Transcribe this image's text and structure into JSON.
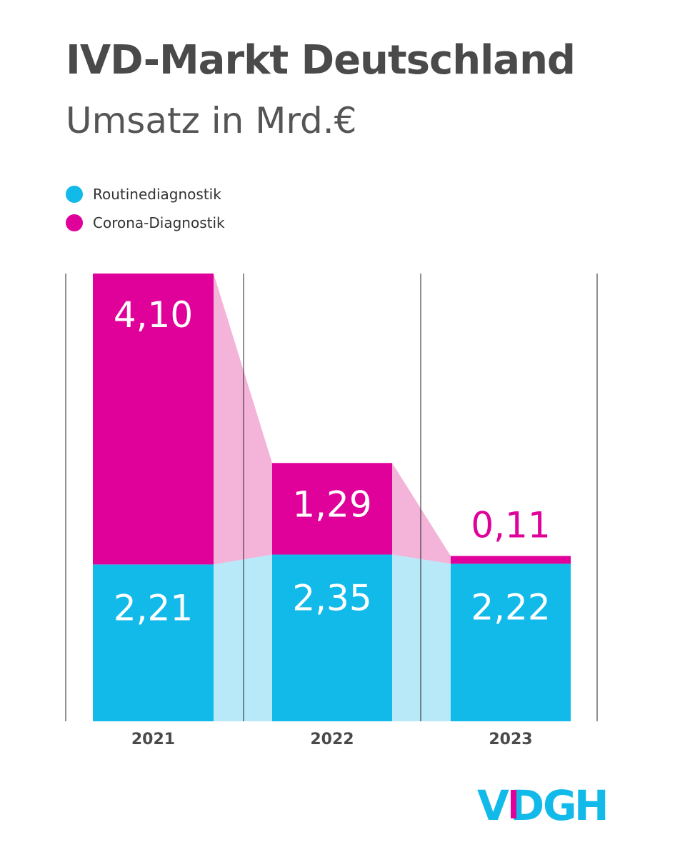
{
  "header": {
    "title": "IVD-Markt Deutschland",
    "subtitle": "Umsatz in Mrd.€"
  },
  "logo": {
    "text": "VDGH"
  },
  "colors": {
    "routine": "#12baea",
    "routine_band": "#b7e9f8",
    "corona": "#e0009a",
    "corona_band": "#f4b3d9",
    "text_dark": "#4a4a4a",
    "logo_blue": "#12baea",
    "logo_pink": "#e0009a"
  },
  "chart_data": {
    "type": "bar",
    "stacked": true,
    "categories": [
      "2021",
      "2022",
      "2023"
    ],
    "series": [
      {
        "name": "Routinediagnostik",
        "values": [
          2.21,
          2.35,
          2.22
        ],
        "labels": [
          "2,21",
          "2,35",
          "2,22"
        ],
        "color": "#12baea"
      },
      {
        "name": "Corona-Diagnostik",
        "values": [
          4.1,
          1.29,
          0.11
        ],
        "labels": [
          "4,10",
          "1,29",
          "0,11"
        ],
        "color": "#e0009a"
      }
    ],
    "ylim": [
      0,
      6.31
    ],
    "grid": false,
    "legend_position": "top-left"
  }
}
